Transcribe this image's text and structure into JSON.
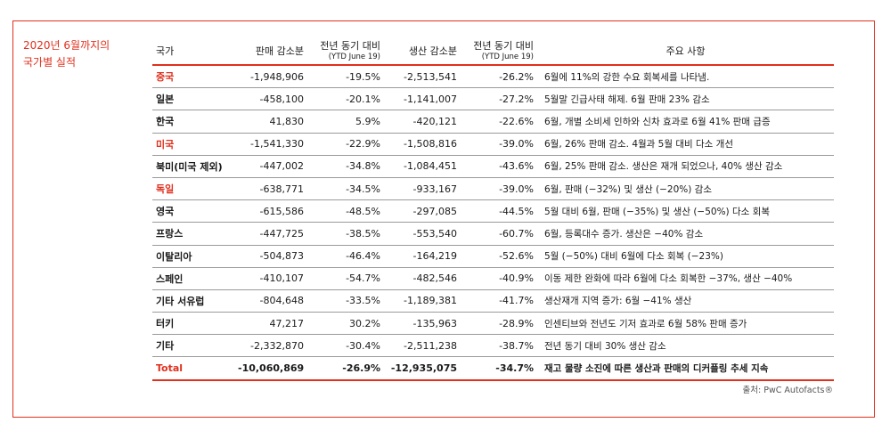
{
  "side_title": "2020년 6월까지의\n국가별 실적",
  "headers": {
    "country": "국가",
    "sales_drop": "판매 감소분",
    "sales_yoy": "전년 동기 대비",
    "sales_yoy_sub": "(YTD June 19)",
    "prod_drop": "생산 감소분",
    "prod_yoy": "전년 동기 대비",
    "prod_yoy_sub": "(YTD June 19)",
    "notes": "주요 사항"
  },
  "rows": [
    {
      "country": "중국",
      "sales_drop": "-1,948,906",
      "sales_yoy": "-19.5%",
      "prod_drop": "-2,513,541",
      "prod_yoy": "-26.2%",
      "note": "6월에 11%의 강한 수요 회복세를 나타냄."
    },
    {
      "country": "일본",
      "sales_drop": "-458,100",
      "sales_yoy": "-20.1%",
      "prod_drop": "-1,141,007",
      "prod_yoy": "-27.2%",
      "note": "5월말 긴급사태 해제. 6월 판매 23% 감소"
    },
    {
      "country": "한국",
      "sales_drop": "41,830",
      "sales_yoy": "5.9%",
      "prod_drop": "-420,121",
      "prod_yoy": "-22.6%",
      "note": "6월, 개별 소비세 인하와 신차 효과로 6월 41% 판매 급증"
    },
    {
      "country": "미국",
      "sales_drop": "-1,541,330",
      "sales_yoy": "-22.9%",
      "prod_drop": "-1,508,816",
      "prod_yoy": "-39.0%",
      "note": "6월, 26% 판매 감소. 4월과 5월 대비 다소 개선"
    },
    {
      "country": "북미(미국 제외)",
      "sales_drop": "-447,002",
      "sales_yoy": "-34.8%",
      "prod_drop": "-1,084,451",
      "prod_yoy": "-43.6%",
      "note": "6월, 25% 판매 감소. 생산은 재개 되었으나, 40% 생산 감소"
    },
    {
      "country": "독일",
      "sales_drop": "-638,771",
      "sales_yoy": "-34.5%",
      "prod_drop": "-933,167",
      "prod_yoy": "-39.0%",
      "note": "6월, 판매 (−32%) 및 생산 (−20%) 감소"
    },
    {
      "country": "영국",
      "sales_drop": "-615,586",
      "sales_yoy": "-48.5%",
      "prod_drop": "-297,085",
      "prod_yoy": "-44.5%",
      "note": "5월 대비 6월, 판매 (−35%) 및 생산 (−50%) 다소 회복"
    },
    {
      "country": "프랑스",
      "sales_drop": "-447,725",
      "sales_yoy": "-38.5%",
      "prod_drop": "-553,540",
      "prod_yoy": "-60.7%",
      "note": "6월, 등록대수 증가. 생산은 −40% 감소"
    },
    {
      "country": "이탈리아",
      "sales_drop": "-504,873",
      "sales_yoy": "-46.4%",
      "prod_drop": "-164,219",
      "prod_yoy": "-52.6%",
      "note": "5월 (−50%) 대비 6월에 다소 회복 (−23%)"
    },
    {
      "country": "스페인",
      "sales_drop": "-410,107",
      "sales_yoy": "-54.7%",
      "prod_drop": "-482,546",
      "prod_yoy": "-40.9%",
      "note": "이동 제한 완화에 따라 6월에 다소 회복한 −37%, 생산 −40%"
    },
    {
      "country": "기타 서유럽",
      "sales_drop": "-804,648",
      "sales_yoy": "-33.5%",
      "prod_drop": "-1,189,381",
      "prod_yoy": "-41.7%",
      "note": "생산재개 지역 증가: 6월 −41% 생산"
    },
    {
      "country": "터키",
      "sales_drop": "47,217",
      "sales_yoy": "30.2%",
      "prod_drop": "-135,963",
      "prod_yoy": "-28.9%",
      "note": "인센티브와 전년도 기저 효과로 6월 58% 판매 증가"
    },
    {
      "country": "기타",
      "sales_drop": "-2,332,870",
      "sales_yoy": "-30.4%",
      "prod_drop": "-2,511,238",
      "prod_yoy": "-38.7%",
      "note": "전년 동기 대비 30% 생산 감소"
    }
  ],
  "total": {
    "country": "Total",
    "sales_drop": "-10,060,869",
    "sales_yoy": "-26.9%",
    "prod_drop": "-12,935,075",
    "prod_yoy": "-34.7%",
    "note": "재고 물량 소진에 따른 생산과 판매의 디커플링 추세 지속"
  },
  "source": "출처: PwC Autofacts®",
  "accent_color": "#e0301e"
}
